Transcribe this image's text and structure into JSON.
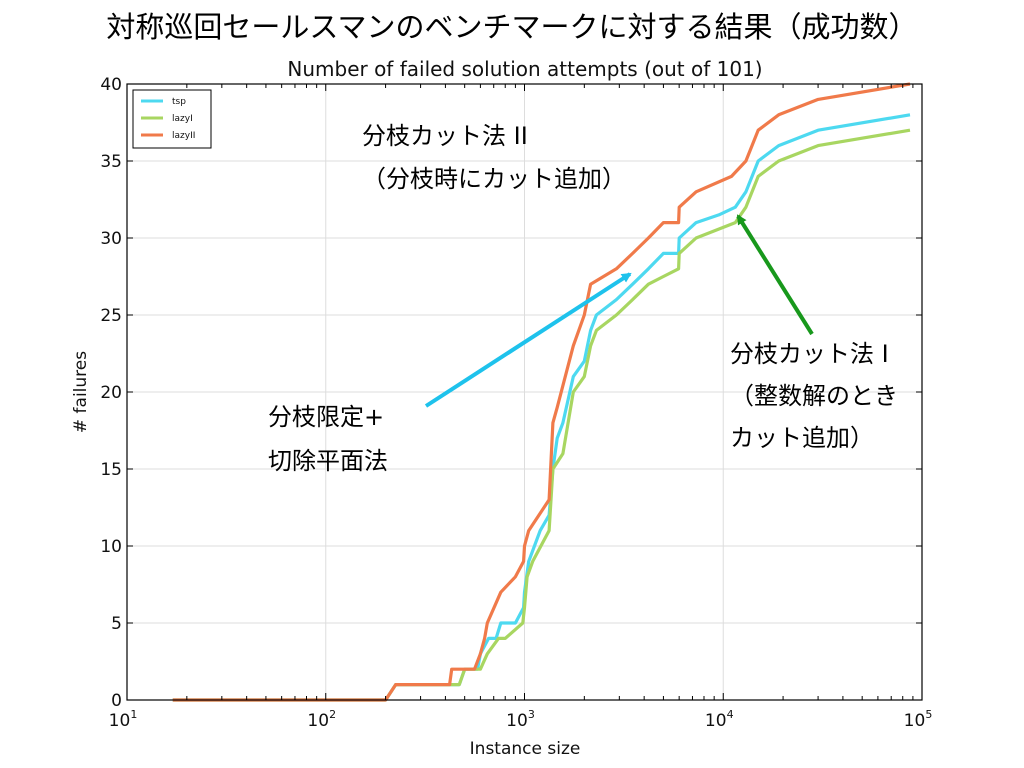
{
  "slide_title": "対称巡回セールスマンのベンチマークに対する結果（成功数）",
  "chart_data": {
    "type": "line",
    "title": "Number of failed solution attempts (out of 101)",
    "xlabel": "Instance size",
    "ylabel": "# failures",
    "xscale": "log",
    "xlim": [
      10,
      100000
    ],
    "ylim": [
      0,
      40
    ],
    "x_ticks": [
      {
        "base": "10",
        "exp": "1",
        "value": 10
      },
      {
        "base": "10",
        "exp": "2",
        "value": 100
      },
      {
        "base": "10",
        "exp": "3",
        "value": 1000
      },
      {
        "base": "10",
        "exp": "4",
        "value": 10000
      },
      {
        "base": "10",
        "exp": "5",
        "value": 100000
      }
    ],
    "y_ticks": [
      0,
      5,
      10,
      15,
      20,
      25,
      30,
      35,
      40
    ],
    "grid": true,
    "legend_position": "top-left",
    "series": [
      {
        "name": "tsp",
        "color": "#4dd9f0",
        "points": [
          [
            17,
            0
          ],
          [
            200,
            0
          ],
          [
            225,
            1
          ],
          [
            420,
            1
          ],
          [
            470,
            1
          ],
          [
            500,
            2
          ],
          [
            580,
            2
          ],
          [
            600,
            3
          ],
          [
            660,
            4
          ],
          [
            720,
            4
          ],
          [
            760,
            5
          ],
          [
            900,
            5
          ],
          [
            990,
            6
          ],
          [
            1000,
            7
          ],
          [
            1050,
            9
          ],
          [
            1200,
            11
          ],
          [
            1330,
            12
          ],
          [
            1390,
            15
          ],
          [
            1460,
            17
          ],
          [
            1560,
            18
          ],
          [
            1760,
            21
          ],
          [
            2000,
            22
          ],
          [
            2150,
            24
          ],
          [
            2300,
            25
          ],
          [
            2900,
            26
          ],
          [
            3500,
            27
          ],
          [
            4200,
            28
          ],
          [
            5000,
            29
          ],
          [
            5960,
            29
          ],
          [
            6000,
            30
          ],
          [
            7300,
            31
          ],
          [
            9500,
            31.5
          ],
          [
            11500,
            32
          ],
          [
            13000,
            33
          ],
          [
            15000,
            35
          ],
          [
            19000,
            36
          ],
          [
            30000,
            37
          ],
          [
            87000,
            38
          ]
        ]
      },
      {
        "name": "lazyI",
        "color": "#a8d661",
        "points": [
          [
            17,
            0
          ],
          [
            200,
            0
          ],
          [
            225,
            1
          ],
          [
            420,
            1
          ],
          [
            470,
            1
          ],
          [
            500,
            2
          ],
          [
            580,
            2
          ],
          [
            600,
            2
          ],
          [
            650,
            3
          ],
          [
            740,
            4
          ],
          [
            800,
            4
          ],
          [
            980,
            5
          ],
          [
            1000,
            6
          ],
          [
            1030,
            8
          ],
          [
            1100,
            9
          ],
          [
            1330,
            11
          ],
          [
            1390,
            15
          ],
          [
            1560,
            16
          ],
          [
            1760,
            20
          ],
          [
            2000,
            21
          ],
          [
            2150,
            23
          ],
          [
            2300,
            24
          ],
          [
            2900,
            25
          ],
          [
            3500,
            26
          ],
          [
            4200,
            27
          ],
          [
            5000,
            27.5
          ],
          [
            5960,
            28
          ],
          [
            6000,
            29
          ],
          [
            7300,
            30
          ],
          [
            11500,
            31
          ],
          [
            13000,
            32
          ],
          [
            15000,
            34
          ],
          [
            19000,
            35
          ],
          [
            30000,
            36
          ],
          [
            87000,
            37
          ]
        ]
      },
      {
        "name": "lazyII",
        "color": "#f07a4a",
        "points": [
          [
            17,
            0
          ],
          [
            200,
            0
          ],
          [
            225,
            1
          ],
          [
            420,
            1
          ],
          [
            430,
            2
          ],
          [
            560,
            2
          ],
          [
            600,
            3
          ],
          [
            630,
            4
          ],
          [
            650,
            5
          ],
          [
            760,
            7
          ],
          [
            900,
            8
          ],
          [
            990,
            9
          ],
          [
            1000,
            10
          ],
          [
            1050,
            11
          ],
          [
            1330,
            13
          ],
          [
            1390,
            18
          ],
          [
            1460,
            19
          ],
          [
            1760,
            23
          ],
          [
            2000,
            25
          ],
          [
            2150,
            27
          ],
          [
            2900,
            28
          ],
          [
            3500,
            29
          ],
          [
            4200,
            30
          ],
          [
            5000,
            31
          ],
          [
            5960,
            31
          ],
          [
            6000,
            32
          ],
          [
            7300,
            33
          ],
          [
            11000,
            34
          ],
          [
            13000,
            35
          ],
          [
            15000,
            37
          ],
          [
            19000,
            38
          ],
          [
            30000,
            39
          ],
          [
            87000,
            40
          ]
        ]
      }
    ]
  },
  "annotations": {
    "bb_cut": {
      "lines": [
        "分枝限定+",
        "切除平面法"
      ],
      "arrow_color": "#1ec2ec"
    },
    "bc2": {
      "lines": [
        "分枝カット法 II",
        "（分枝時にカット追加）"
      ]
    },
    "bc1": {
      "lines": [
        "分枝カット法 I",
        "（整数解のとき",
        "カット追加）"
      ],
      "arrow_color": "#18981c"
    }
  }
}
